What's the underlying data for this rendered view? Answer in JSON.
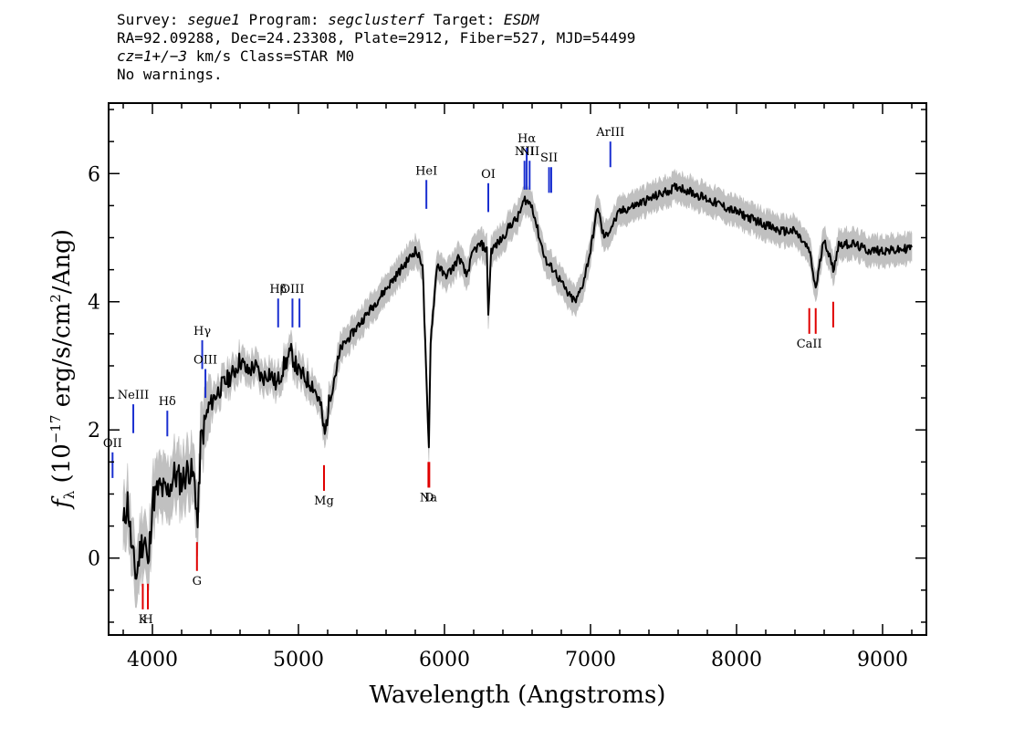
{
  "header": {
    "line1": {
      "survey_label": "Survey:",
      "survey": "segue1",
      "program_label": "Program:",
      "program": "segclusterf",
      "target_label": "Target:",
      "target": "ESDM"
    },
    "line2": "RA=92.09288, Dec=24.23308, Plate=2912, Fiber=527, MJD=54499",
    "line3": {
      "cz": "cz=1+/−3",
      "rest": "km/s Class=STAR M0"
    },
    "line4": "No warnings."
  },
  "chart_data": {
    "type": "line",
    "xlabel": "Wavelength (Angstroms)",
    "ylabel": "f_λ (10^-17 erg/s/cm^2/Ang)",
    "xlim": [
      3700,
      9300
    ],
    "ylim": [
      -1.2,
      7.1
    ],
    "x_ticks": [
      4000,
      5000,
      6000,
      7000,
      8000,
      9000
    ],
    "y_ticks": [
      0,
      2,
      4,
      6
    ],
    "grid": false,
    "colors": {
      "spectrum": "#000000",
      "error_band": "#c0c0c0",
      "emission": "#1a2fd0",
      "absorption": "#e00000"
    },
    "series": [
      {
        "values_xy": [
          [
            3800,
            0.5
          ],
          [
            3830,
            0.9
          ],
          [
            3860,
            0.1
          ],
          [
            3890,
            -0.3
          ],
          [
            3920,
            0.2
          ],
          [
            3950,
            0.3
          ],
          [
            3970,
            -0.2
          ],
          [
            4000,
            0.9
          ],
          [
            4050,
            1.1
          ],
          [
            4100,
            1.0
          ],
          [
            4150,
            1.3
          ],
          [
            4200,
            1.2
          ],
          [
            4250,
            1.4
          ],
          [
            4290,
            1.2
          ],
          [
            4310,
            0.5
          ],
          [
            4330,
            1.8
          ],
          [
            4380,
            2.3
          ],
          [
            4420,
            2.5
          ],
          [
            4480,
            2.7
          ],
          [
            4520,
            2.8
          ],
          [
            4560,
            2.9
          ],
          [
            4600,
            3.1
          ],
          [
            4650,
            2.9
          ],
          [
            4700,
            3.0
          ],
          [
            4750,
            2.8
          ],
          [
            4800,
            2.9
          ],
          [
            4850,
            2.7
          ],
          [
            4900,
            3.0
          ],
          [
            4950,
            3.2
          ],
          [
            5000,
            2.9
          ],
          [
            5050,
            2.8
          ],
          [
            5100,
            2.7
          ],
          [
            5150,
            2.4
          ],
          [
            5180,
            1.9
          ],
          [
            5220,
            2.6
          ],
          [
            5300,
            3.3
          ],
          [
            5400,
            3.6
          ],
          [
            5500,
            3.9
          ],
          [
            5600,
            4.2
          ],
          [
            5700,
            4.5
          ],
          [
            5800,
            4.8
          ],
          [
            5850,
            4.6
          ],
          [
            5880,
            2.5
          ],
          [
            5893,
            1.7
          ],
          [
            5905,
            3.4
          ],
          [
            5950,
            4.6
          ],
          [
            6000,
            4.4
          ],
          [
            6050,
            4.5
          ],
          [
            6100,
            4.7
          ],
          [
            6150,
            4.4
          ],
          [
            6200,
            4.8
          ],
          [
            6250,
            4.9
          ],
          [
            6290,
            4.8
          ],
          [
            6300,
            3.8
          ],
          [
            6320,
            4.8
          ],
          [
            6400,
            5.0
          ],
          [
            6450,
            5.2
          ],
          [
            6500,
            5.3
          ],
          [
            6550,
            5.6
          ],
          [
            6600,
            5.5
          ],
          [
            6650,
            5.0
          ],
          [
            6700,
            4.6
          ],
          [
            6750,
            4.5
          ],
          [
            6800,
            4.3
          ],
          [
            6850,
            4.1
          ],
          [
            6900,
            4.0
          ],
          [
            6950,
            4.3
          ],
          [
            7000,
            4.8
          ],
          [
            7050,
            5.5
          ],
          [
            7080,
            5.1
          ],
          [
            7100,
            5.0
          ],
          [
            7150,
            5.2
          ],
          [
            7200,
            5.4
          ],
          [
            7300,
            5.5
          ],
          [
            7400,
            5.6
          ],
          [
            7500,
            5.7
          ],
          [
            7600,
            5.8
          ],
          [
            7700,
            5.7
          ],
          [
            7800,
            5.6
          ],
          [
            7900,
            5.5
          ],
          [
            8000,
            5.4
          ],
          [
            8100,
            5.3
          ],
          [
            8200,
            5.2
          ],
          [
            8300,
            5.1
          ],
          [
            8400,
            5.1
          ],
          [
            8498,
            4.8
          ],
          [
            8542,
            4.2
          ],
          [
            8600,
            5.0
          ],
          [
            8662,
            4.5
          ],
          [
            8700,
            4.9
          ],
          [
            8800,
            4.9
          ],
          [
            8900,
            4.8
          ],
          [
            9000,
            4.8
          ],
          [
            9100,
            4.8
          ],
          [
            9200,
            4.85
          ]
        ]
      }
    ],
    "emission_lines": [
      {
        "label": "OII",
        "x": 3727,
        "y_bottom": 1.25,
        "y_top": 1.65
      },
      {
        "label": "NeIII",
        "x": 3869,
        "y_bottom": 1.95,
        "y_top": 2.4
      },
      {
        "label": "Hδ",
        "x": 4102,
        "y_bottom": 1.9,
        "y_top": 2.3
      },
      {
        "label": "Hγ",
        "x": 4341,
        "y_bottom": 2.95,
        "y_top": 3.4
      },
      {
        "label": "OIII",
        "x": 4363,
        "y_bottom": 2.5,
        "y_top": 2.95
      },
      {
        "label": "Hβ",
        "x": 4861,
        "y_bottom": 3.6,
        "y_top": 4.05
      },
      {
        "label": "OIII",
        "x": 4959,
        "y_bottom": 3.6,
        "y_top": 4.05
      },
      {
        "label": "",
        "x": 5007,
        "y_bottom": 3.6,
        "y_top": 4.05
      },
      {
        "label": "HeI",
        "x": 5876,
        "y_bottom": 5.45,
        "y_top": 5.9
      },
      {
        "label": "OI",
        "x": 6300,
        "y_bottom": 5.4,
        "y_top": 5.85
      },
      {
        "label": "NII",
        "x": 6548,
        "y_bottom": 5.75,
        "y_top": 6.2
      },
      {
        "label": "Hα",
        "x": 6563,
        "y_bottom": 5.75,
        "y_top": 6.4
      },
      {
        "label": "NII",
        "x": 6583,
        "y_bottom": 5.75,
        "y_top": 6.2
      },
      {
        "label": "SII",
        "x": 6716,
        "y_bottom": 5.7,
        "y_top": 6.1
      },
      {
        "label": "",
        "x": 6731,
        "y_bottom": 5.7,
        "y_top": 6.1
      },
      {
        "label": "ArIII",
        "x": 7136,
        "y_bottom": 6.1,
        "y_top": 6.5
      }
    ],
    "absorption_lines": [
      {
        "label": "K",
        "x": 3934,
        "y_bottom": -0.8,
        "y_top": -0.4
      },
      {
        "label": "H",
        "x": 3969,
        "y_bottom": -0.8,
        "y_top": -0.4
      },
      {
        "label": "G",
        "x": 4305,
        "y_bottom": -0.2,
        "y_top": 0.25
      },
      {
        "label": "Mg",
        "x": 5175,
        "y_bottom": 1.05,
        "y_top": 1.45
      },
      {
        "label": "Na",
        "x": 5890,
        "y_bottom": 1.1,
        "y_top": 1.5
      },
      {
        "label": "D",
        "x": 5896,
        "y_bottom": 1.1,
        "y_top": 1.5
      },
      {
        "label": "CaII",
        "x": 8498,
        "y_bottom": 3.5,
        "y_top": 3.9
      },
      {
        "label": "",
        "x": 8542,
        "y_bottom": 3.5,
        "y_top": 3.9
      },
      {
        "label": "",
        "x": 8662,
        "y_bottom": 3.6,
        "y_top": 4.0
      }
    ]
  }
}
